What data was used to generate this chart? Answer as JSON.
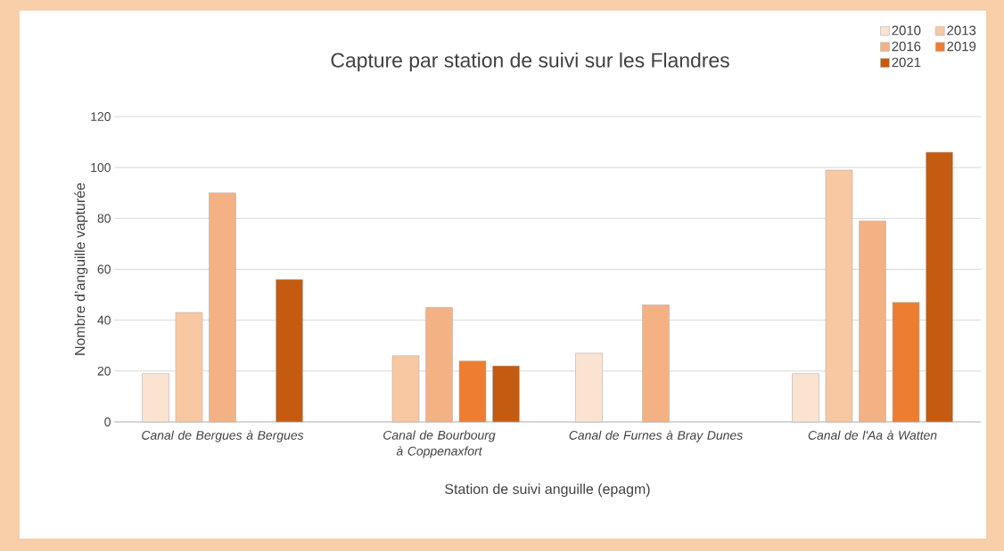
{
  "chart_data": {
    "type": "bar",
    "title": "Capture par station de suivi sur les Flandres",
    "xlabel": "Station de suivi anguille (epagm)",
    "ylabel": "Nombre d’anguille vapturée",
    "categories": [
      "Canal de Bergues à Bergues",
      "Canal de Bourbourg à Coppenaxfort",
      "Canal de Furnes à Bray Dunes",
      "Canal de l'Aa à Watten"
    ],
    "series": [
      {
        "name": "2010",
        "color": "#fbe3d2",
        "values": [
          19,
          null,
          27,
          19
        ]
      },
      {
        "name": "2013",
        "color": "#f8c8a3",
        "values": [
          43,
          26,
          null,
          99
        ]
      },
      {
        "name": "2016",
        "color": "#f4b183",
        "values": [
          90,
          45,
          46,
          79
        ]
      },
      {
        "name": "2019",
        "color": "#ed7d31",
        "values": [
          null,
          24,
          null,
          47
        ]
      },
      {
        "name": "2021",
        "color": "#c55a11",
        "values": [
          56,
          22,
          null,
          106
        ]
      }
    ],
    "ylim": [
      0,
      120
    ],
    "yticks": [
      0,
      20,
      40,
      60,
      80,
      100,
      120
    ],
    "grid": "y",
    "legend": "top right"
  }
}
